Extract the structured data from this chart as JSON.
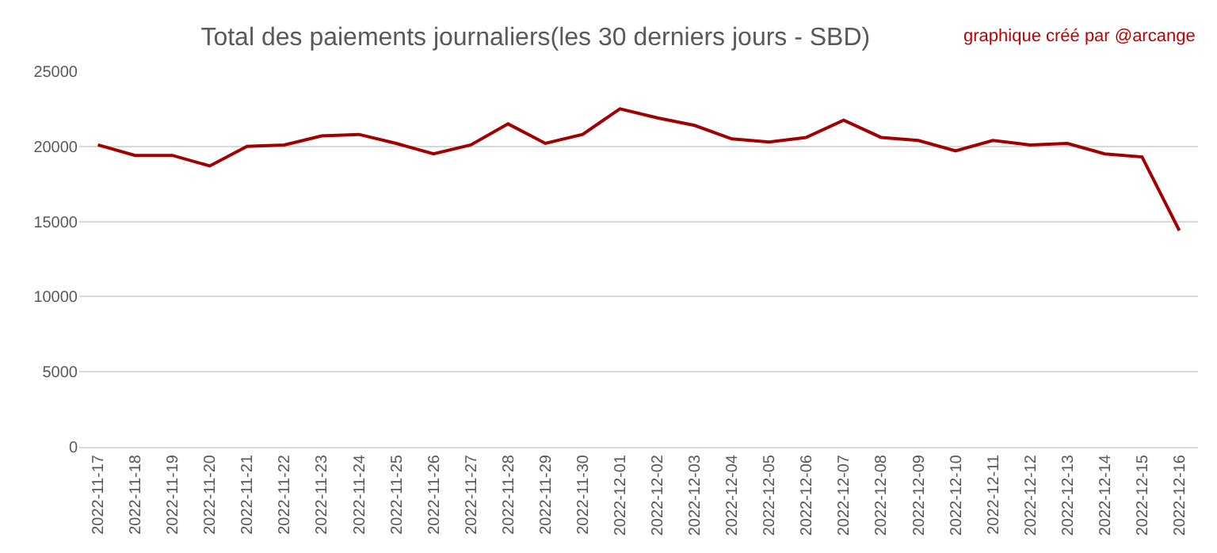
{
  "chart_data": {
    "type": "line",
    "title": "Total des paiements journaliers(les 30 derniers jours - SBD)",
    "annotations": [
      "graphique créé par @arcange"
    ],
    "categories": [
      "2022-11-17",
      "2022-11-18",
      "2022-11-19",
      "2022-11-20",
      "2022-11-21",
      "2022-11-22",
      "2022-11-23",
      "2022-11-24",
      "2022-11-25",
      "2022-11-26",
      "2022-11-27",
      "2022-11-28",
      "2022-11-29",
      "2022-11-30",
      "2022-12-01",
      "2022-12-02",
      "2022-12-03",
      "2022-12-04",
      "2022-12-05",
      "2022-12-06",
      "2022-12-07",
      "2022-12-08",
      "2022-12-09",
      "2022-12-10",
      "2022-12-11",
      "2022-12-12",
      "2022-12-13",
      "2022-12-14",
      "2022-12-15",
      "2022-12-16"
    ],
    "series": [
      {
        "color": "#a00000",
        "values": [
          20100,
          19400,
          19400,
          18700,
          20000,
          20100,
          20700,
          20800,
          20200,
          19500,
          20100,
          21500,
          20200,
          20800,
          22500,
          21900,
          21400,
          20500,
          20300,
          20600,
          21750,
          20600,
          20400,
          19700,
          20400,
          20100,
          20200,
          19500,
          19300,
          14400
        ]
      }
    ],
    "ylim": [
      0,
      25000
    ],
    "yticks": [
      0,
      5000,
      10000,
      15000,
      20000,
      25000
    ],
    "grid": "y",
    "marker": "none",
    "line_style": "solid"
  }
}
